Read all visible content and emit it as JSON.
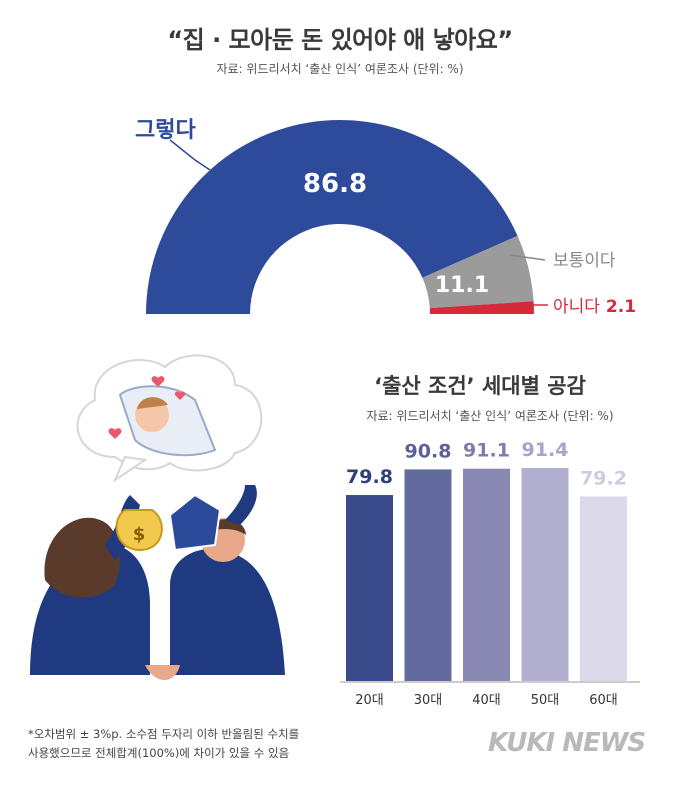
{
  "header": {
    "title": "“집 · 모아둔 돈 있어야 애 낳아요”",
    "source": "자료: 위드리서치 ‘출산 인식’ 여론조사 (단위: %)"
  },
  "chart_data": [
    {
      "type": "pie",
      "title": "“집 · 모아둔 돈 있어야 애 낳아요”",
      "subtitle": "자료: 위드리서치 ‘출산 인식’ 여론조사 (단위: %)",
      "series": [
        {
          "name": "그렇다",
          "value": 86.8,
          "label": "86.8",
          "color": "#2e4a9a"
        },
        {
          "name": "보통이다",
          "value": 11.1,
          "label": "11.1",
          "color": "#9b9b9b"
        },
        {
          "name": "아니다",
          "value": 2.1,
          "label": "2.1",
          "color": "#d42a3c"
        }
      ],
      "label_colors": {
        "그렇다": "#2e4a9a",
        "보통이다": "#888888",
        "아니다": "#d42a3c"
      }
    },
    {
      "type": "bar",
      "title": "‘출산 조건’ 세대별 공감",
      "subtitle": "자료: 위드리서치 ‘출산 인식’ 여론조사 (단위: %)",
      "categories": [
        "20대",
        "30대",
        "40대",
        "50대",
        "60대"
      ],
      "values": [
        79.8,
        90.8,
        91.1,
        91.4,
        79.2
      ],
      "labels": [
        "79.8",
        "90.8",
        "91.1",
        "91.4",
        "79.2"
      ],
      "colors": [
        "#3a4a8a",
        "#636a9e",
        "#8a88b4",
        "#b1aed0",
        "#dcdaea"
      ],
      "label_colors": [
        "#2f3f7a",
        "#5b6196",
        "#7f7cad",
        "#a9a5c9",
        "#cfcce1"
      ],
      "ylim": [
        0,
        100
      ]
    }
  ],
  "bar_section": {
    "title": "‘출산 조건’ 세대별 공감",
    "source": "자료: 위드리서치 ‘출산 인식’ 여론조사 (단위: %)"
  },
  "footnote": {
    "line1": "*오차범위 ± 3%p. 소수점 두자리 이하 반올림된 수치를",
    "line2": "사용했으므로 전체합계(100%)에 차이가 있을 수 있음"
  },
  "logo": "KUKI NEWS"
}
